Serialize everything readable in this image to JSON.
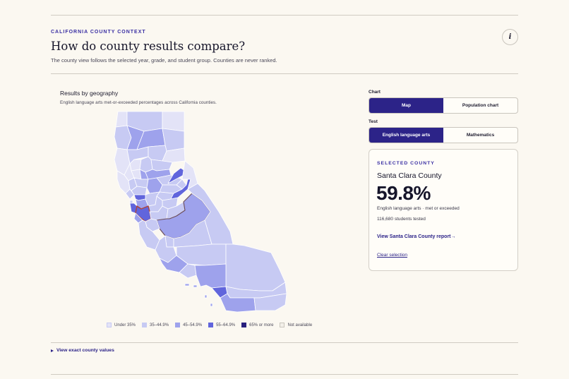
{
  "header": {
    "eyebrow": "CALIFORNIA COUNTY CONTEXT",
    "title": "How do county results compare?",
    "subtitle": "The county view follows the selected year, grade, and student group. Counties are never ranked.",
    "info_icon": "info-icon",
    "info_glyph": "i"
  },
  "map": {
    "title": "Results by geography",
    "subtitle": "English language arts met-or-exceeded percentages across California counties.",
    "legend": [
      {
        "label": "Under 35%",
        "color": "#e3e3f7"
      },
      {
        "label": "35–44.9%",
        "color": "#c7caf3"
      },
      {
        "label": "45–54.9%",
        "color": "#9ea2ec"
      },
      {
        "label": "55–64.9%",
        "color": "#6165dc"
      },
      {
        "label": "65% or more",
        "color": "#28207e"
      },
      {
        "label": "Not available",
        "color": "#f3f0e9"
      }
    ]
  },
  "controls": {
    "chart_label": "Chart",
    "chart_options": [
      "Map",
      "Population chart"
    ],
    "chart_selected": "Map",
    "test_label": "Test",
    "test_options": [
      "English language arts",
      "Mathematics"
    ],
    "test_selected": "English language arts"
  },
  "selected_county": {
    "eyebrow": "SELECTED COUNTY",
    "name": "Santa Clara County",
    "value": "59.8%",
    "metric": "English language arts · met or exceeded",
    "students": "116,680 students tested",
    "report_link": "View Santa Clara County report→",
    "clear_label": "Clear selection"
  },
  "details": {
    "label": "View exact county values"
  },
  "colors": {
    "accent": "#2c2388",
    "highlight_outline": "#b0443a"
  }
}
